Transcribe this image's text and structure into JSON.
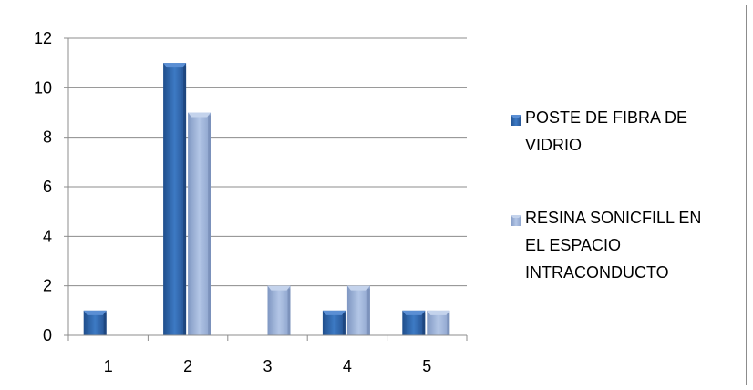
{
  "chart_data": {
    "type": "bar",
    "categories": [
      "1",
      "2",
      "3",
      "4",
      "5"
    ],
    "series": [
      {
        "name": "POSTE DE FIBRA DE VIDRIO",
        "values": [
          1,
          11,
          0,
          1,
          1
        ],
        "color": "#2e64a8"
      },
      {
        "name": "RESINA SONICFILL EN EL ESPACIO INTRACONDUCTO",
        "values": [
          0,
          9,
          2,
          2,
          1
        ],
        "color": "#8fa7cf"
      }
    ],
    "ylim": [
      0,
      12
    ],
    "yticks": [
      0,
      2,
      4,
      6,
      8,
      10,
      12
    ],
    "grid": true,
    "legend": "right",
    "legend_lines": [
      [
        "POSTE DE FIBRA DE",
        "VIDRIO"
      ],
      [
        "RESINA SONICFILL EN",
        "EL ESPACIO",
        "INTRACONDUCTO"
      ]
    ],
    "title": "",
    "xlabel": "",
    "ylabel": ""
  }
}
